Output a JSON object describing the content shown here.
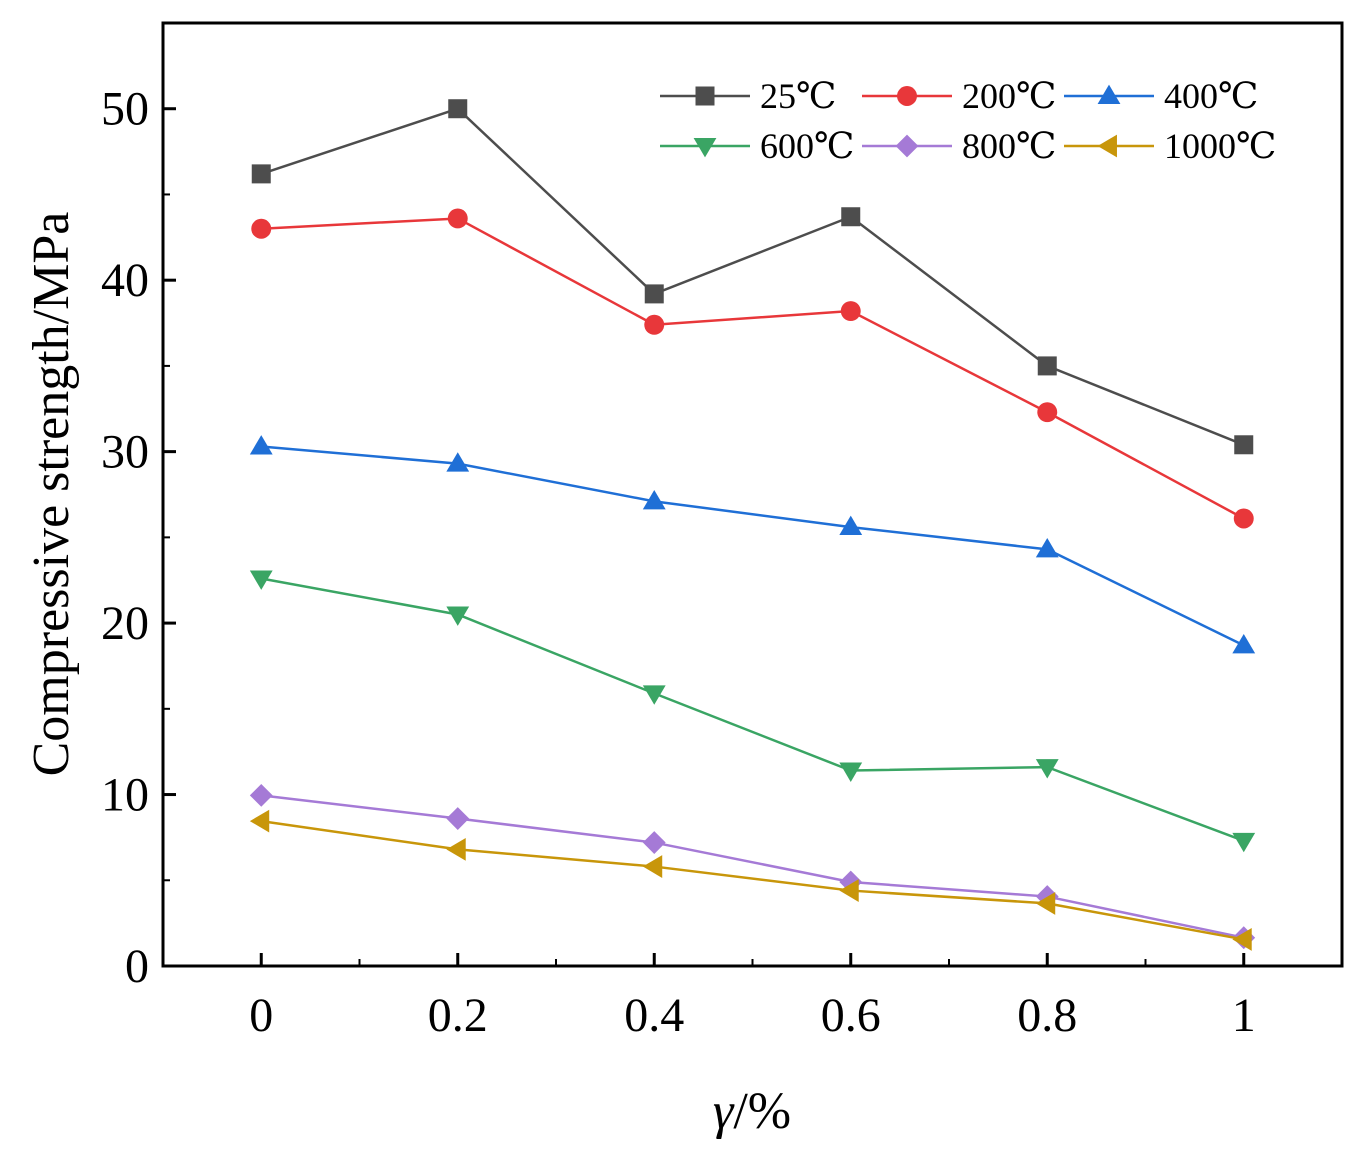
{
  "chart_data": {
    "type": "line",
    "title": "",
    "xlabel_symbol": "γ",
    "xlabel_unit": "/%",
    "ylabel": "Compressive strength/MPa",
    "xlim": [
      -0.1,
      1.1
    ],
    "ylim": [
      0,
      55
    ],
    "x": [
      0,
      0.2,
      0.4,
      0.6,
      0.8,
      1
    ],
    "x_tick_labels": [
      "0",
      "0.2",
      "0.4",
      "0.6",
      "0.8",
      "1"
    ],
    "y_ticks": [
      0,
      10,
      20,
      30,
      40,
      50
    ],
    "y_tick_labels": [
      "0",
      "10",
      "20",
      "30",
      "40",
      "50"
    ],
    "grid": false,
    "legend_position": "top-right",
    "series": [
      {
        "name": "25℃",
        "color": "#4d4d4d",
        "marker": "square",
        "values": [
          46.2,
          50.0,
          39.2,
          43.7,
          35.0,
          30.4
        ]
      },
      {
        "name": "200℃",
        "color": "#e8373a",
        "marker": "circle",
        "values": [
          43.0,
          43.6,
          37.4,
          38.2,
          32.3,
          26.1
        ]
      },
      {
        "name": "400℃",
        "color": "#1f6fd6",
        "marker": "triangle-up",
        "values": [
          30.3,
          29.3,
          27.1,
          25.6,
          24.3,
          18.7
        ]
      },
      {
        "name": "600℃",
        "color": "#3aa564",
        "marker": "triangle-down",
        "values": [
          22.6,
          20.5,
          15.9,
          11.4,
          11.6,
          7.3
        ]
      },
      {
        "name": "800℃",
        "color": "#a57ad6",
        "marker": "diamond",
        "values": [
          9.95,
          8.6,
          7.2,
          4.9,
          4.05,
          1.65
        ]
      },
      {
        "name": "1000℃",
        "color": "#c8960a",
        "marker": "triangle-left",
        "values": [
          8.45,
          6.8,
          5.8,
          4.4,
          3.65,
          1.55
        ]
      }
    ]
  }
}
